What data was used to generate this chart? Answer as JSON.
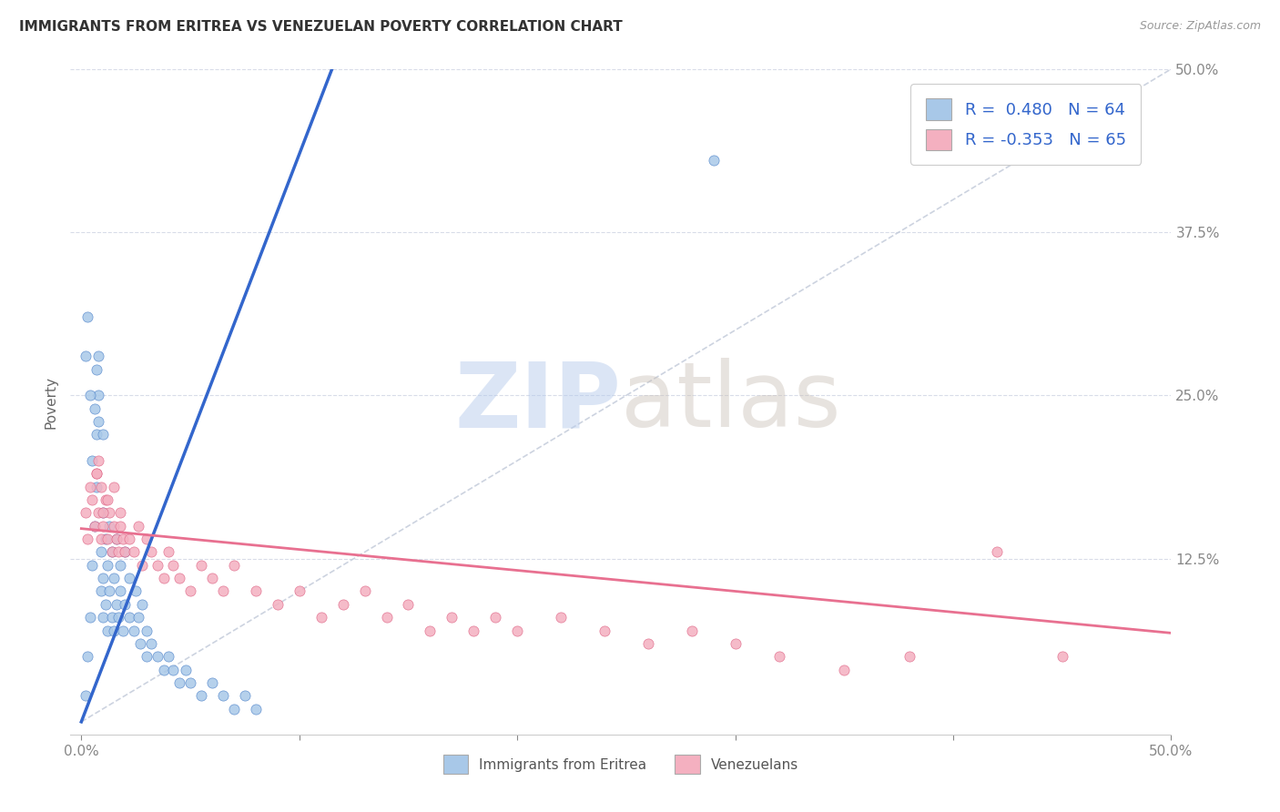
{
  "title": "IMMIGRANTS FROM ERITREA VS VENEZUELAN POVERTY CORRELATION CHART",
  "source": "Source: ZipAtlas.com",
  "ylabel": "Poverty",
  "yticks": [
    0.0,
    0.125,
    0.25,
    0.375,
    0.5
  ],
  "ytick_labels": [
    "",
    "12.5%",
    "25.0%",
    "37.5%",
    "50.0%"
  ],
  "xticks": [
    0.0,
    0.1,
    0.2,
    0.3,
    0.4,
    0.5
  ],
  "xtick_labels": [
    "0.0%",
    "",
    "",
    "",
    "",
    "50.0%"
  ],
  "xlim": [
    -0.005,
    0.5
  ],
  "ylim": [
    -0.01,
    0.5
  ],
  "color_eritrea": "#a8c8e8",
  "color_eritrea_edge": "#5588cc",
  "color_venezuela": "#f4b0c0",
  "color_venezuela_edge": "#e06888",
  "color_eritrea_line": "#3366cc",
  "color_venezuela_line": "#e87090",
  "color_dashed": "#c0c8d8",
  "legend_label_eritrea": "Immigrants from Eritrea",
  "legend_label_venezuelans": "Venezuelans",
  "eritrea_line_x": [
    0.0,
    0.115
  ],
  "eritrea_line_y": [
    0.0,
    0.5
  ],
  "venezuela_line_x": [
    0.0,
    0.5
  ],
  "venezuela_line_y": [
    0.148,
    0.068
  ],
  "dashed_line_x": [
    0.0,
    0.5
  ],
  "dashed_line_y": [
    0.0,
    0.5
  ],
  "eritrea_x": [
    0.002,
    0.003,
    0.004,
    0.005,
    0.006,
    0.007,
    0.007,
    0.008,
    0.008,
    0.009,
    0.009,
    0.01,
    0.01,
    0.01,
    0.011,
    0.011,
    0.012,
    0.012,
    0.013,
    0.013,
    0.014,
    0.014,
    0.015,
    0.015,
    0.016,
    0.016,
    0.017,
    0.018,
    0.018,
    0.019,
    0.02,
    0.02,
    0.022,
    0.022,
    0.024,
    0.025,
    0.026,
    0.027,
    0.028,
    0.03,
    0.03,
    0.032,
    0.035,
    0.038,
    0.04,
    0.042,
    0.045,
    0.048,
    0.05,
    0.055,
    0.06,
    0.065,
    0.07,
    0.075,
    0.08,
    0.002,
    0.003,
    0.004,
    0.005,
    0.006,
    0.007,
    0.008,
    0.01,
    0.29
  ],
  "eritrea_y": [
    0.02,
    0.05,
    0.08,
    0.12,
    0.15,
    0.18,
    0.22,
    0.25,
    0.28,
    0.1,
    0.13,
    0.08,
    0.11,
    0.16,
    0.09,
    0.14,
    0.07,
    0.12,
    0.1,
    0.15,
    0.08,
    0.13,
    0.07,
    0.11,
    0.09,
    0.14,
    0.08,
    0.12,
    0.1,
    0.07,
    0.09,
    0.13,
    0.08,
    0.11,
    0.07,
    0.1,
    0.08,
    0.06,
    0.09,
    0.07,
    0.05,
    0.06,
    0.05,
    0.04,
    0.05,
    0.04,
    0.03,
    0.04,
    0.03,
    0.02,
    0.03,
    0.02,
    0.01,
    0.02,
    0.01,
    0.28,
    0.31,
    0.25,
    0.2,
    0.24,
    0.27,
    0.23,
    0.22,
    0.43
  ],
  "venezuela_x": [
    0.002,
    0.003,
    0.004,
    0.005,
    0.006,
    0.007,
    0.008,
    0.009,
    0.01,
    0.011,
    0.012,
    0.013,
    0.014,
    0.015,
    0.016,
    0.017,
    0.018,
    0.019,
    0.02,
    0.022,
    0.024,
    0.026,
    0.028,
    0.03,
    0.032,
    0.035,
    0.038,
    0.04,
    0.042,
    0.045,
    0.05,
    0.055,
    0.06,
    0.065,
    0.07,
    0.08,
    0.09,
    0.1,
    0.11,
    0.12,
    0.13,
    0.14,
    0.15,
    0.16,
    0.17,
    0.18,
    0.19,
    0.2,
    0.22,
    0.24,
    0.26,
    0.28,
    0.3,
    0.32,
    0.35,
    0.38,
    0.007,
    0.008,
    0.009,
    0.01,
    0.012,
    0.015,
    0.018,
    0.42,
    0.45
  ],
  "venezuela_y": [
    0.16,
    0.14,
    0.18,
    0.17,
    0.15,
    0.19,
    0.16,
    0.14,
    0.15,
    0.17,
    0.14,
    0.16,
    0.13,
    0.15,
    0.14,
    0.13,
    0.15,
    0.14,
    0.13,
    0.14,
    0.13,
    0.15,
    0.12,
    0.14,
    0.13,
    0.12,
    0.11,
    0.13,
    0.12,
    0.11,
    0.1,
    0.12,
    0.11,
    0.1,
    0.12,
    0.1,
    0.09,
    0.1,
    0.08,
    0.09,
    0.1,
    0.08,
    0.09,
    0.07,
    0.08,
    0.07,
    0.08,
    0.07,
    0.08,
    0.07,
    0.06,
    0.07,
    0.06,
    0.05,
    0.04,
    0.05,
    0.19,
    0.2,
    0.18,
    0.16,
    0.17,
    0.18,
    0.16,
    0.13,
    0.05
  ]
}
